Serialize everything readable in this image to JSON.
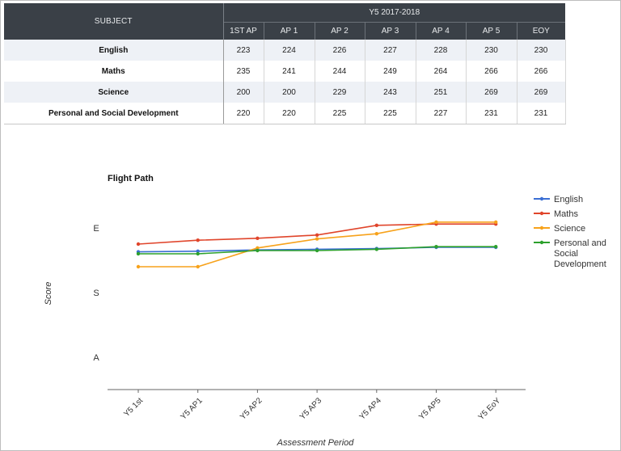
{
  "table": {
    "subject_header": "SUBJECT",
    "year_header": "Y5 2017-2018",
    "periods": [
      "1ST AP",
      "AP 1",
      "AP 2",
      "AP 3",
      "AP 4",
      "AP 5",
      "EOY"
    ],
    "rows": [
      {
        "subject": "English",
        "values": [
          "223",
          "224",
          "226",
          "227",
          "228",
          "230",
          "230"
        ]
      },
      {
        "subject": "Maths",
        "values": [
          "235",
          "241",
          "244",
          "249",
          "264",
          "266",
          "266"
        ]
      },
      {
        "subject": "Science",
        "values": [
          "200",
          "200",
          "229",
          "243",
          "251",
          "269",
          "269"
        ]
      },
      {
        "subject": "Personal and Social Development",
        "values": [
          "220",
          "220",
          "225",
          "225",
          "227",
          "231",
          "231"
        ]
      }
    ]
  },
  "chart_data": {
    "type": "line",
    "title": "Flight Path",
    "xlabel": "Assessment Period",
    "ylabel": "Score",
    "categories": [
      "Y5 1st",
      "Y5 AP1",
      "Y5 AP2",
      "Y5 AP3",
      "Y5 AP4",
      "Y5 AP5",
      "Y5 EoY"
    ],
    "y_ticks": [
      {
        "label": "E",
        "value": 260
      },
      {
        "label": "S",
        "value": 160
      },
      {
        "label": "A",
        "value": 60
      }
    ],
    "ylim": [
      10,
      300
    ],
    "legend_position": "right",
    "grid": false,
    "series": [
      {
        "name": "English",
        "color": "#3b6fd4",
        "values": [
          223,
          224,
          226,
          227,
          228,
          230,
          230
        ]
      },
      {
        "name": "Maths",
        "color": "#e0452b",
        "values": [
          235,
          241,
          244,
          249,
          264,
          266,
          266
        ]
      },
      {
        "name": "Science",
        "color": "#f7a21b",
        "values": [
          200,
          200,
          229,
          243,
          251,
          269,
          269
        ]
      },
      {
        "name": "Personal and Social Development",
        "color": "#2ca02c",
        "values": [
          220,
          220,
          225,
          225,
          227,
          231,
          231
        ]
      }
    ]
  }
}
